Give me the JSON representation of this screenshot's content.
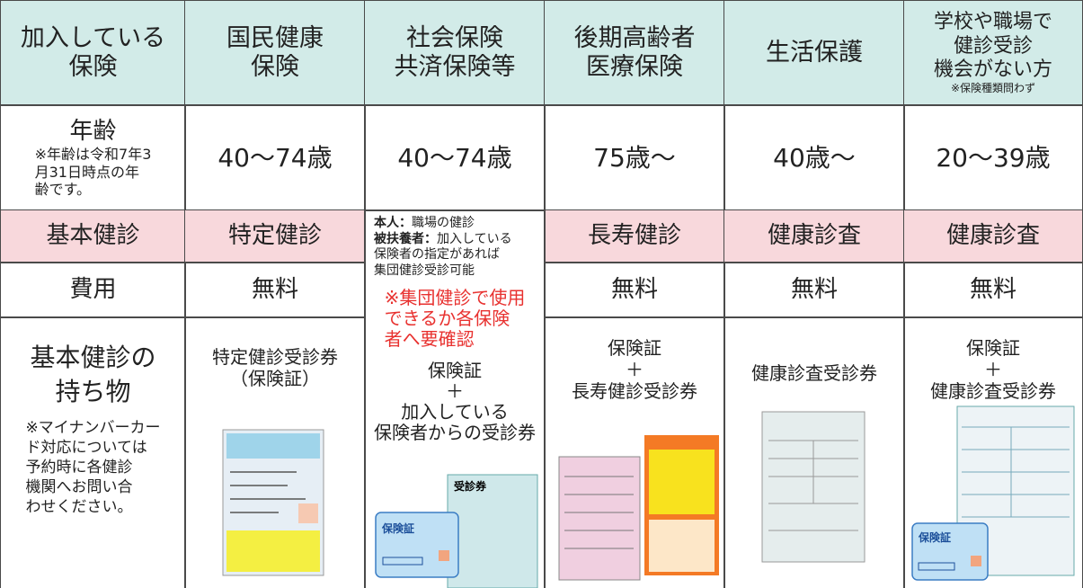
{
  "header": {
    "label": [
      "加入している",
      "保険"
    ],
    "columns": [
      [
        "国民健康",
        "保険"
      ],
      [
        "社会保険",
        "共済保険等"
      ],
      [
        "後期高齢者",
        "医療保険"
      ],
      [
        "生活保護"
      ],
      [
        "学校や職場で",
        "健診受診",
        "機会がない方"
      ]
    ],
    "note": "※保険種類問わず"
  },
  "age": {
    "label": "年齢",
    "note": [
      "※年齢は令和7年3",
      "月31日時点の年",
      "齢です。"
    ],
    "values": [
      "40〜74歳",
      "40〜74歳",
      "75歳〜",
      "40歳〜",
      "20〜39歳"
    ]
  },
  "checkup": {
    "label": "基本健診",
    "values": [
      "特定健診",
      "長寿健診",
      "健康診査",
      "健康診査"
    ]
  },
  "cost": {
    "label": "費用",
    "values": [
      "無料",
      "無料",
      "無料",
      "無料"
    ]
  },
  "shakai": {
    "self_label": "本人：",
    "self": "職場の健診",
    "dependent_label": "被扶養者：",
    "dependent": [
      "加入している",
      "保険者の指定があれば",
      "集団健診受診可能"
    ],
    "warning": [
      "※集団健診で使用",
      "できるか各保険",
      "者へ要確認"
    ],
    "items": [
      "保険証",
      "＋",
      "加入している",
      "保険者からの受診券"
    ],
    "voucher": "受診券"
  },
  "items": {
    "label": [
      "基本健診の",
      "持ち物"
    ],
    "note": [
      "※マイナンバーカー",
      "ド対応については",
      "予約時に各健診",
      "機関へお問い合",
      "わせください。"
    ],
    "values": [
      [
        "特定健診受診券",
        "（保険証）"
      ],
      [
        "保険証",
        "＋",
        "長寿健診受診券"
      ],
      [
        "健康診査受診券"
      ],
      [
        "保険証",
        "＋",
        "健康診査受診券"
      ]
    ],
    "card": "保険証"
  }
}
